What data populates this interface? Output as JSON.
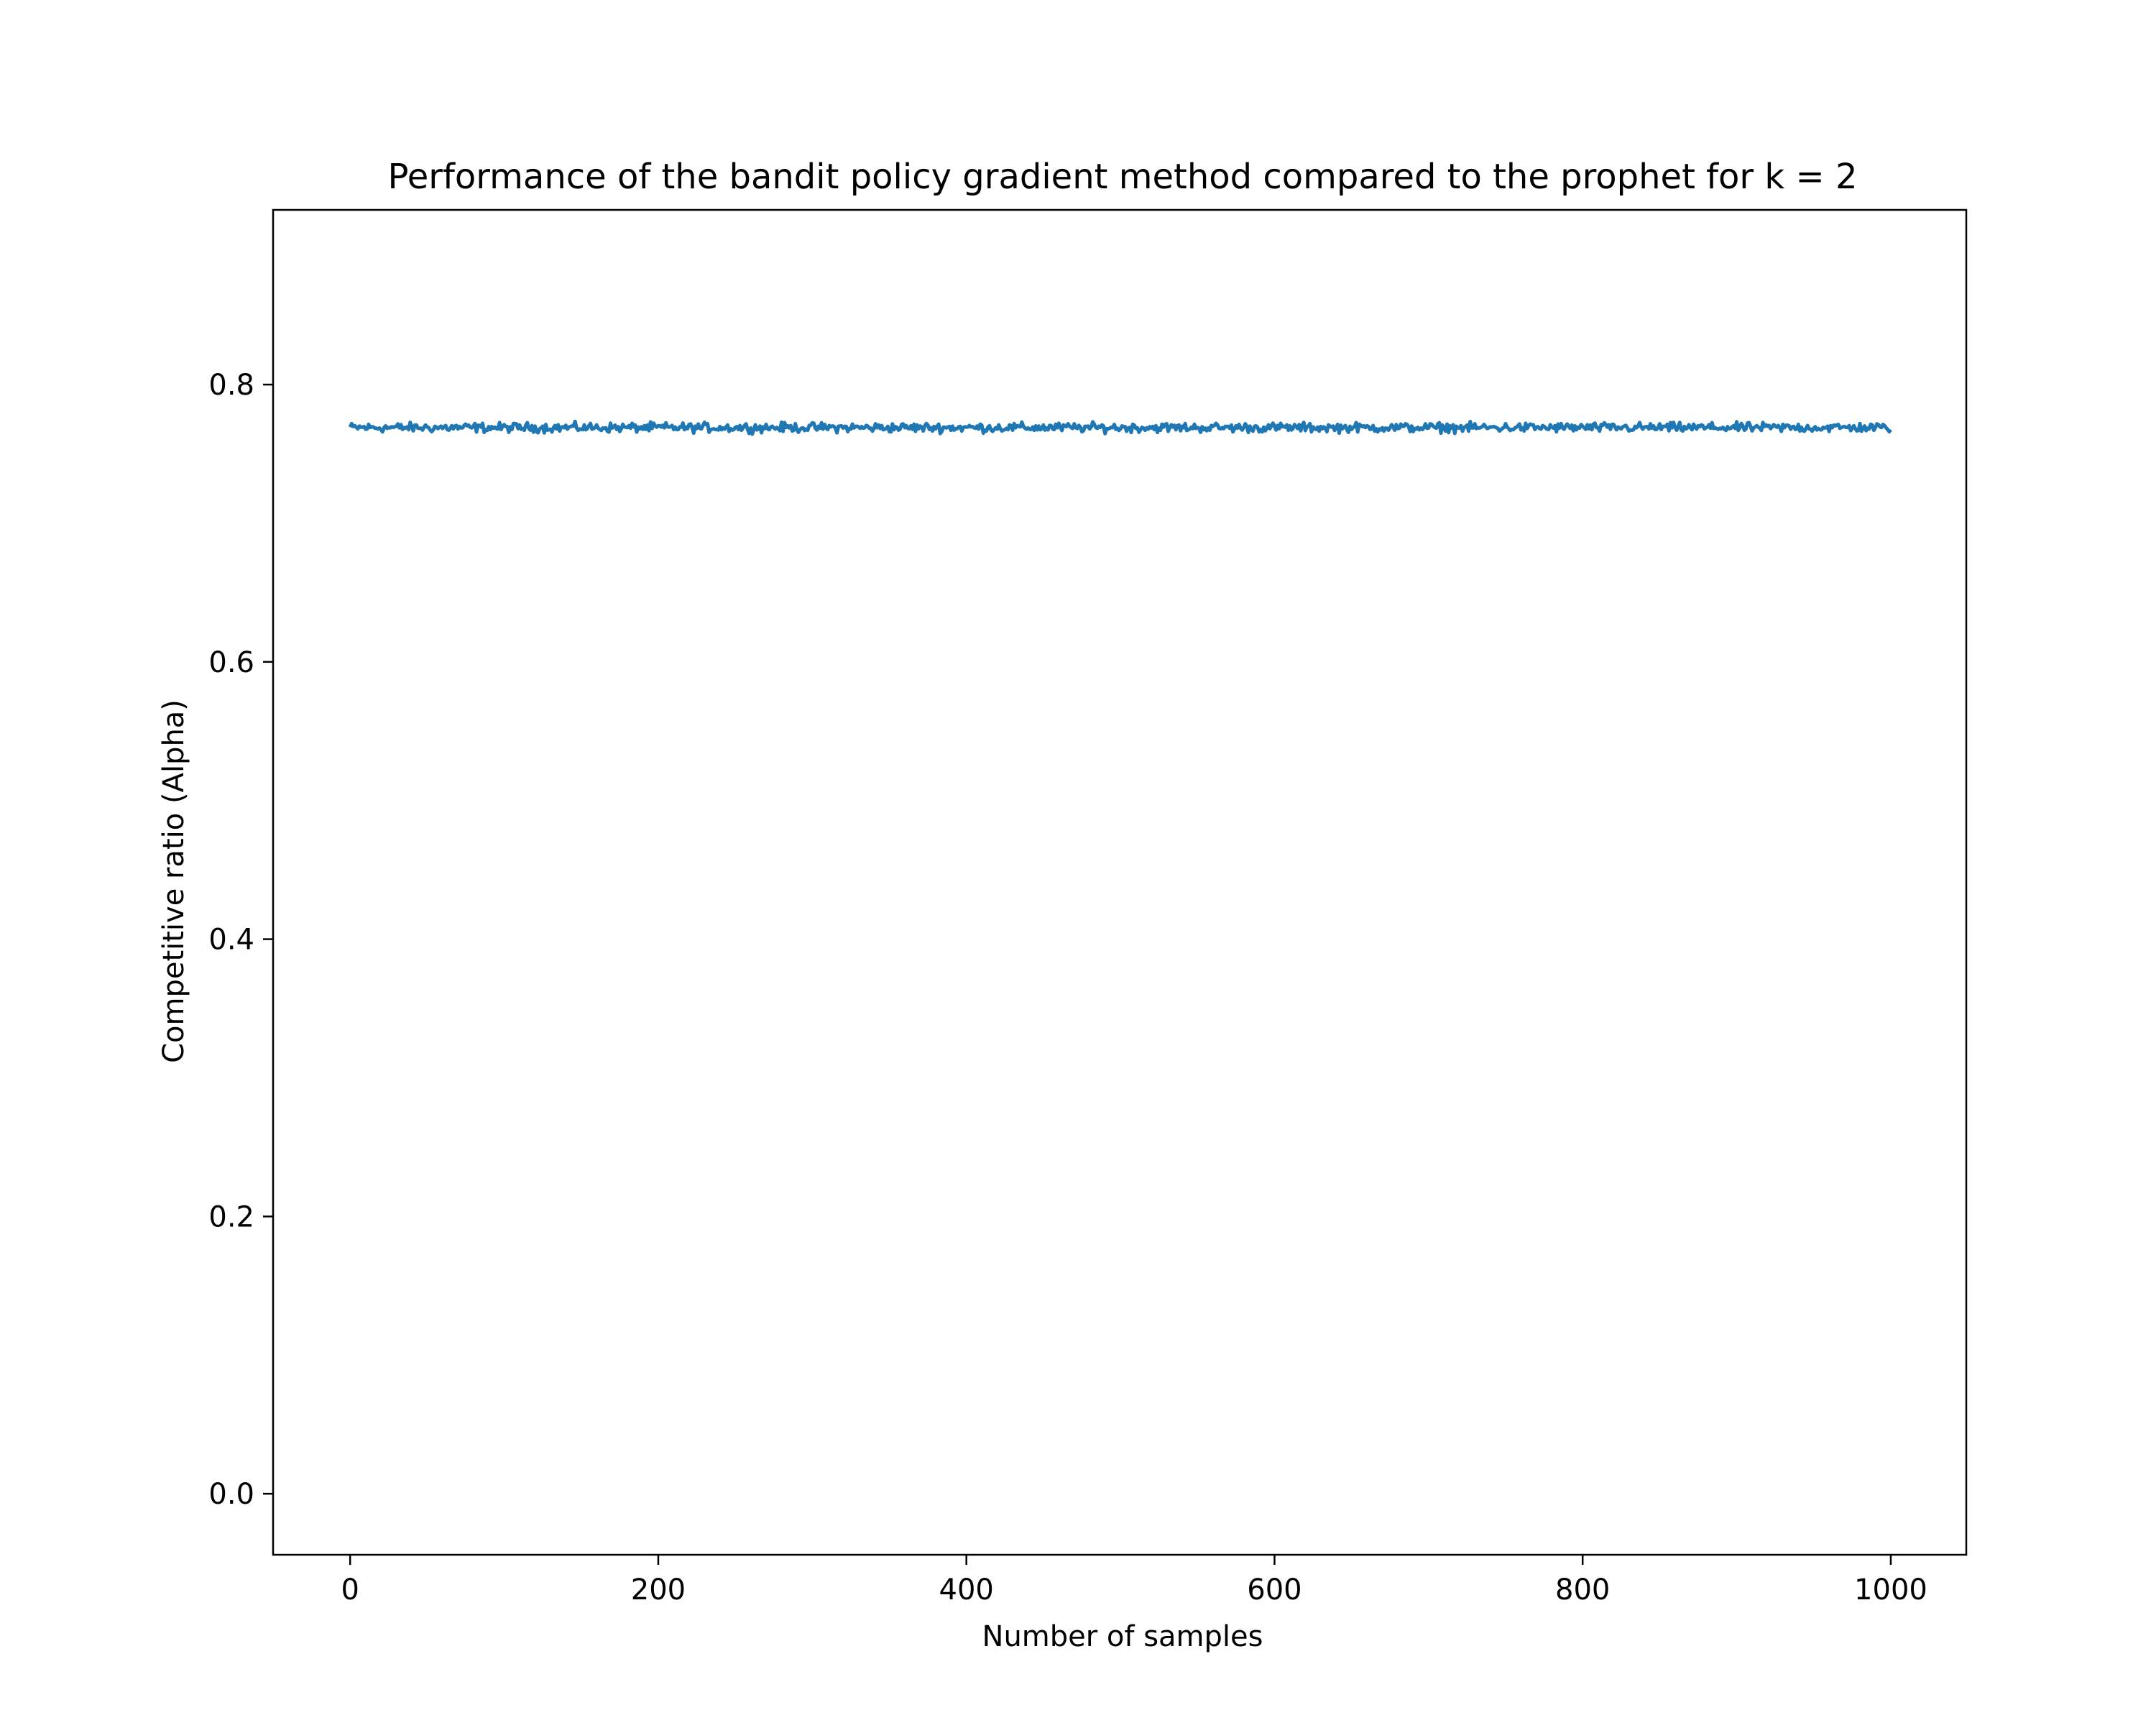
{
  "chart_data": {
    "type": "line",
    "title": "Performance of the bandit policy gradient method compared to the prophet for k = 2",
    "xlabel": "Number of samples",
    "ylabel": "Competitive ratio (Alpha)",
    "xlim": [
      -50,
      1049
    ],
    "ylim": [
      -0.044,
      0.926
    ],
    "xticks": [
      0,
      200,
      400,
      600,
      800,
      1000
    ],
    "xtick_labels": [
      "0",
      "200",
      "400",
      "600",
      "800",
      "1000"
    ],
    "yticks": [
      0.0,
      0.2,
      0.4,
      0.6,
      0.8
    ],
    "ytick_labels": [
      "0.0",
      "0.2",
      "0.4",
      "0.6",
      "0.8"
    ],
    "grid": false,
    "legend": "none",
    "series": [
      {
        "color": "#1f77b4",
        "x_start": 0,
        "x_end": 1000,
        "mean": 0.769,
        "min": 0.764,
        "max": 0.774,
        "note_values": "approximately constant noisy series around 0.769 for all samples"
      }
    ]
  }
}
